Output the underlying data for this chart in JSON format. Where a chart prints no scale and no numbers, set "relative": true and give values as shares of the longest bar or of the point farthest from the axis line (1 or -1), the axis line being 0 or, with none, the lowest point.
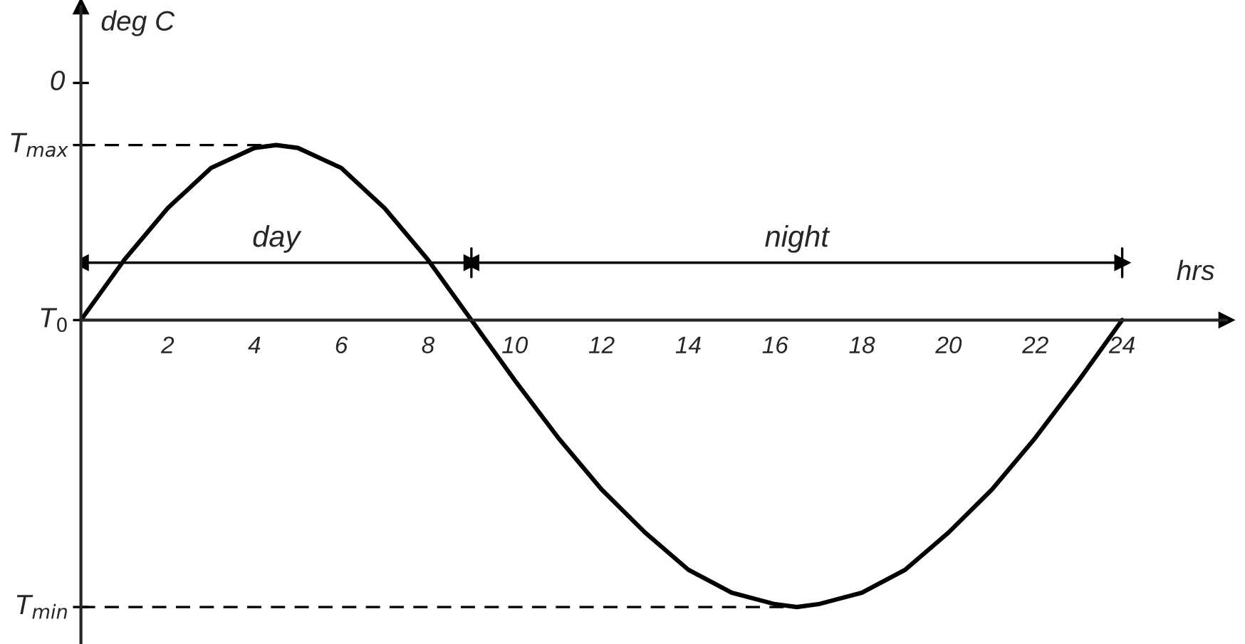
{
  "chart_data": {
    "type": "line",
    "relative": true,
    "xlabel": "hrs",
    "ylabel": "deg C",
    "xlim": [
      0,
      26.4
    ],
    "xticks": [
      2,
      4,
      6,
      8,
      10,
      12,
      14,
      16,
      18,
      20,
      22,
      24
    ],
    "series": [
      {
        "color": "#000000",
        "line_style": "solid",
        "x": [
          0,
          1,
          2,
          3,
          4,
          4.5,
          5,
          6,
          7,
          8,
          9,
          10,
          11,
          12,
          13,
          14,
          15,
          16,
          16.5,
          17,
          18,
          19,
          20,
          21,
          22,
          23,
          24
        ],
        "values": [
          0,
          0.21,
          0.39,
          0.53,
          0.6,
          0.61,
          0.6,
          0.53,
          0.39,
          0.21,
          0,
          -0.21,
          -0.41,
          -0.59,
          -0.74,
          -0.87,
          -0.95,
          -0.99,
          -1,
          -0.99,
          -0.95,
          -0.87,
          -0.74,
          -0.59,
          -0.41,
          -0.21,
          0
        ]
      },
      {
        "color": "#000000",
        "line_style": "dashed",
        "x": [
          0,
          4.5
        ],
        "values": [
          0.61,
          0.61
        ]
      },
      {
        "color": "#000000",
        "line_style": "dashed",
        "x": [
          0,
          16.5
        ],
        "values": [
          -1,
          -1
        ]
      },
      {
        "color": "#000000",
        "line_style": "solid",
        "marker": "triangle",
        "x": [
          0,
          9,
          24
        ],
        "values": [
          0.2,
          0.2,
          0.2
        ]
      }
    ],
    "annotations": [
      {
        "text": "T$_{max}$",
        "x": 0,
        "y": 0.61
      },
      {
        "text": "T$_{0}$",
        "x": 0,
        "y": 0
      },
      {
        "text": "T$_{min}$",
        "x": 0,
        "y": -1
      },
      "0",
      {
        "text": "day",
        "x": 4.5,
        "y": 0.2
      },
      {
        "text": "night",
        "x": 16.5,
        "y": 0.2
      }
    ],
    "grid": false
  }
}
